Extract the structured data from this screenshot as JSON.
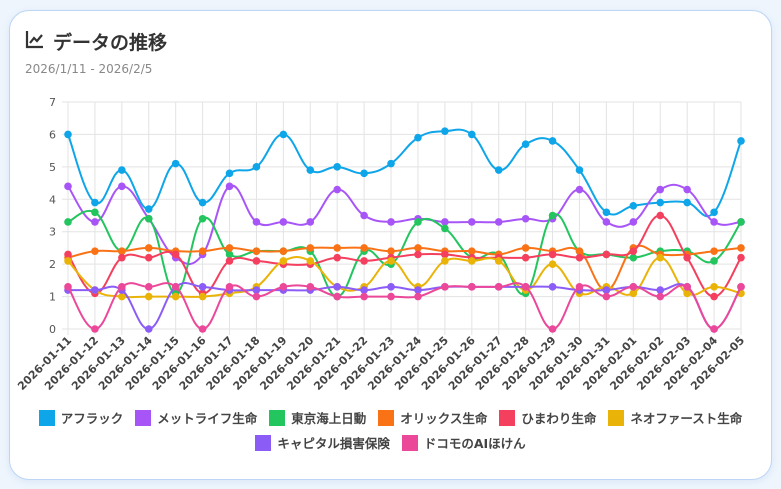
{
  "header": {
    "title": "データの推移",
    "subtitle": "2026/1/11 - 2026/2/5",
    "icon": "line-chart-icon"
  },
  "chart_data": {
    "type": "line",
    "title": "データの推移",
    "subtitle": "2026/1/11 - 2026/2/5",
    "ylim": [
      0,
      7
    ],
    "yticks": [
      0,
      1,
      2,
      3,
      4,
      5,
      6,
      7
    ],
    "grid": true,
    "legend": "bottom",
    "categories": [
      "2026-01-11",
      "2026-01-12",
      "2026-01-13",
      "2026-01-14",
      "2026-01-15",
      "2026-01-16",
      "2026-01-17",
      "2026-01-18",
      "2026-01-19",
      "2026-01-20",
      "2026-01-21",
      "2026-01-22",
      "2026-01-23",
      "2026-01-24",
      "2026-01-25",
      "2026-01-26",
      "2026-01-27",
      "2026-01-28",
      "2026-01-29",
      "2026-01-30",
      "2026-01-31",
      "2026-02-01",
      "2026-02-02",
      "2026-02-03",
      "2026-02-04",
      "2026-02-05"
    ],
    "series": [
      {
        "name": "アフラック",
        "color": "#0ea5e9",
        "values": [
          6.0,
          3.9,
          4.9,
          3.7,
          5.1,
          3.9,
          4.8,
          5.0,
          6.0,
          4.9,
          5.0,
          4.8,
          5.1,
          5.9,
          6.1,
          6.0,
          4.9,
          5.7,
          5.8,
          4.9,
          3.6,
          3.8,
          3.9,
          3.9,
          3.6,
          5.8
        ]
      },
      {
        "name": "メットライフ生命",
        "color": "#a855f7",
        "values": [
          4.4,
          3.3,
          4.4,
          3.4,
          2.2,
          2.3,
          4.4,
          3.3,
          3.3,
          3.3,
          4.3,
          3.5,
          3.3,
          3.4,
          3.3,
          3.3,
          3.3,
          3.4,
          3.4,
          4.3,
          3.3,
          3.3,
          4.3,
          4.3,
          3.3,
          3.3
        ]
      },
      {
        "name": "東京海上日動",
        "color": "#22c55e",
        "values": [
          3.3,
          3.6,
          2.4,
          3.4,
          1.1,
          3.4,
          2.3,
          2.4,
          2.4,
          2.4,
          1.0,
          2.4,
          2.0,
          3.3,
          3.1,
          2.2,
          2.3,
          1.1,
          3.5,
          2.4,
          2.3,
          2.2,
          2.4,
          2.4,
          2.1,
          3.3
        ]
      },
      {
        "name": "オリックス生命",
        "color": "#f97316",
        "values": [
          2.2,
          2.4,
          2.4,
          2.5,
          2.4,
          2.4,
          2.5,
          2.4,
          2.4,
          2.5,
          2.5,
          2.5,
          2.4,
          2.5,
          2.4,
          2.4,
          2.3,
          2.5,
          2.4,
          2.4,
          1.2,
          2.5,
          2.3,
          2.3,
          2.4,
          2.5
        ]
      },
      {
        "name": "ひまわり生命",
        "color": "#f43f5e",
        "values": [
          2.3,
          1.1,
          2.2,
          2.2,
          2.3,
          1.1,
          2.1,
          2.1,
          2.0,
          2.0,
          2.2,
          2.1,
          2.2,
          2.3,
          2.3,
          2.2,
          2.2,
          2.2,
          2.3,
          2.2,
          2.3,
          2.4,
          3.5,
          2.2,
          1.0,
          2.2
        ]
      },
      {
        "name": "ネオファースト生命",
        "color": "#eab308",
        "values": [
          2.1,
          1.2,
          1.0,
          1.0,
          1.0,
          1.0,
          1.1,
          1.3,
          2.1,
          2.1,
          1.3,
          1.3,
          2.1,
          1.3,
          2.1,
          2.1,
          2.1,
          1.2,
          2.0,
          1.1,
          1.3,
          1.1,
          2.2,
          1.1,
          1.3,
          1.1
        ]
      },
      {
        "name": "キャピタル損害保険",
        "color": "#8b5cf6",
        "values": [
          1.2,
          1.2,
          1.2,
          0,
          1.3,
          1.3,
          1.2,
          1.2,
          1.2,
          1.2,
          1.3,
          1.2,
          1.3,
          1.2,
          1.3,
          1.3,
          1.3,
          1.3,
          1.3,
          1.2,
          1.2,
          1.3,
          1.2,
          1.3,
          0,
          1.3
        ]
      },
      {
        "name": "ドコモのAIほけん",
        "color": "#ec4899",
        "values": [
          1.3,
          0,
          1.3,
          1.3,
          1.3,
          0,
          1.3,
          1.0,
          1.3,
          1.3,
          1.0,
          1.0,
          1.0,
          1.0,
          1.3,
          1.3,
          1.3,
          1.3,
          0,
          1.3,
          1.0,
          1.3,
          1.0,
          1.3,
          0,
          1.3
        ]
      }
    ]
  }
}
